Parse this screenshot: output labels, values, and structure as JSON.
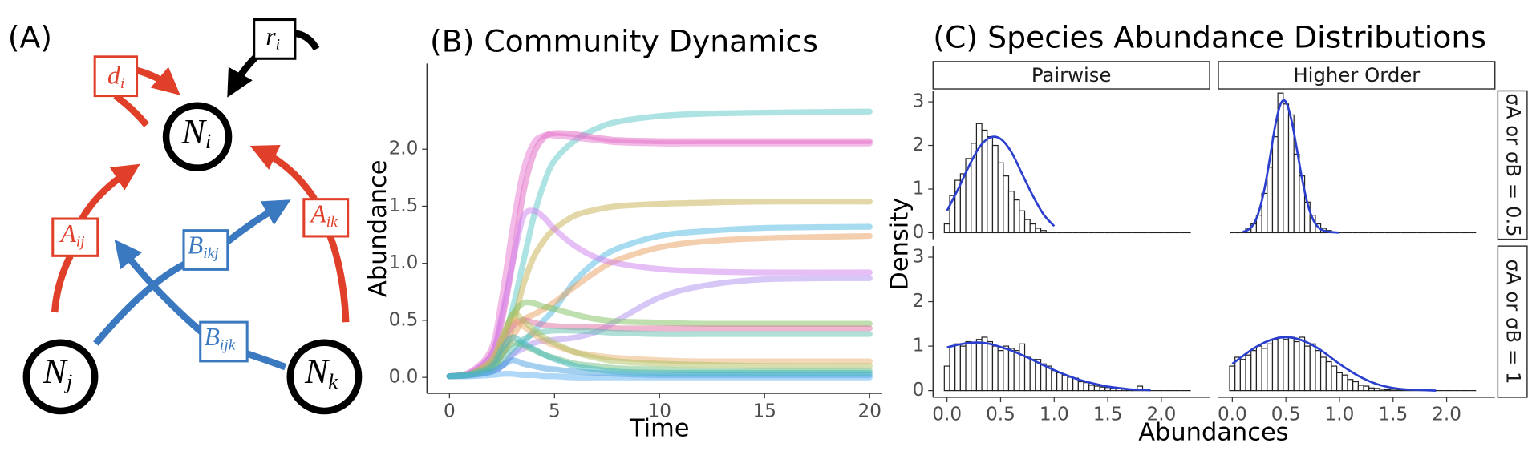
{
  "panel_label": "(A)",
  "diagram": {
    "nodes": [
      {
        "label": "N",
        "sub": "i"
      },
      {
        "label": "N",
        "sub": "j"
      },
      {
        "label": "N",
        "sub": "k"
      }
    ],
    "edges": [
      {
        "label": "d",
        "sub": "i"
      },
      {
        "label": "r",
        "sub": "i"
      },
      {
        "label": "A",
        "sub": "ij"
      },
      {
        "label": "A",
        "sub": "ik"
      },
      {
        "label": "B",
        "sub": "ikj"
      },
      {
        "label": "B",
        "sub": "ijk"
      }
    ]
  },
  "chart_data": [
    {
      "type": "line",
      "title": "(B) Community Dynamics",
      "xlabel": "Time",
      "ylabel": "Abundance",
      "grid": false,
      "xlim": [
        -1.07,
        20.6
      ],
      "ylim": [
        -0.14,
        2.75
      ],
      "xticks": [
        0,
        5,
        10,
        15,
        20
      ],
      "yticks": [
        {
          "value": 0,
          "label": "0.0"
        },
        0.5,
        {
          "value": 1,
          "label": "1.0"
        },
        1.5,
        {
          "value": 2,
          "label": "2.0"
        }
      ],
      "x": [
        0,
        1,
        2,
        2.5,
        3,
        3.5,
        4,
        4.5,
        5,
        6,
        7,
        8,
        10,
        12,
        15,
        20
      ],
      "series": [
        {
          "color": "#5bc8c8",
          "values": [
            0.01,
            0.03,
            0.12,
            0.3,
            0.6,
            1.0,
            1.4,
            1.7,
            1.9,
            2.08,
            2.18,
            2.24,
            2.29,
            2.31,
            2.32,
            2.33
          ]
        },
        {
          "color": "#e060c0",
          "values": [
            0.01,
            0.04,
            0.2,
            0.5,
            1.0,
            1.6,
            1.95,
            2.1,
            2.14,
            2.13,
            2.1,
            2.08,
            2.07,
            2.07,
            2.07,
            2.07
          ]
        },
        {
          "color": "#e878d0",
          "values": [
            0.01,
            0.05,
            0.25,
            0.7,
            1.3,
            1.8,
            2.05,
            2.12,
            2.12,
            2.1,
            2.08,
            2.06,
            2.05,
            2.05,
            2.05,
            2.05
          ]
        },
        {
          "color": "#c8b050",
          "values": [
            0.01,
            0.02,
            0.08,
            0.2,
            0.45,
            0.8,
            1.05,
            1.2,
            1.3,
            1.42,
            1.47,
            1.5,
            1.52,
            1.53,
            1.54,
            1.54
          ]
        },
        {
          "color": "#50b8e0",
          "values": [
            0.01,
            0.02,
            0.05,
            0.1,
            0.2,
            0.3,
            0.4,
            0.5,
            0.6,
            0.85,
            1.02,
            1.13,
            1.24,
            1.28,
            1.31,
            1.32
          ]
        },
        {
          "color": "#e8a060",
          "values": [
            0.01,
            0.03,
            0.1,
            0.2,
            0.35,
            0.5,
            0.55,
            0.6,
            0.66,
            0.8,
            0.93,
            1.03,
            1.14,
            1.19,
            1.22,
            1.24
          ]
        },
        {
          "color": "#d080f0",
          "values": [
            0.01,
            0.04,
            0.2,
            0.55,
            1.0,
            1.4,
            1.46,
            1.4,
            1.3,
            1.15,
            1.05,
            1.0,
            0.95,
            0.93,
            0.92,
            0.92
          ]
        },
        {
          "color": "#b090f0",
          "values": [
            0.01,
            0.02,
            0.05,
            0.1,
            0.2,
            0.25,
            0.3,
            0.32,
            0.33,
            0.35,
            0.4,
            0.5,
            0.7,
            0.8,
            0.86,
            0.87
          ]
        },
        {
          "color": "#80c060",
          "values": [
            0.01,
            0.03,
            0.15,
            0.35,
            0.55,
            0.65,
            0.65,
            0.62,
            0.6,
            0.55,
            0.51,
            0.49,
            0.48,
            0.47,
            0.47,
            0.47
          ]
        },
        {
          "color": "#e070a0",
          "values": [
            0.01,
            0.03,
            0.12,
            0.3,
            0.45,
            0.5,
            0.48,
            0.46,
            0.45,
            0.44,
            0.44,
            0.43,
            0.43,
            0.43,
            0.43,
            0.43
          ]
        },
        {
          "color": "#60c0b0",
          "values": [
            0.01,
            0.02,
            0.06,
            0.15,
            0.25,
            0.33,
            0.38,
            0.4,
            0.41,
            0.41,
            0.4,
            0.39,
            0.38,
            0.38,
            0.38,
            0.38
          ]
        },
        {
          "color": "#e8b070",
          "values": [
            0.01,
            0.03,
            0.15,
            0.35,
            0.5,
            0.45,
            0.38,
            0.32,
            0.28,
            0.22,
            0.19,
            0.17,
            0.15,
            0.14,
            0.14,
            0.14
          ]
        },
        {
          "color": "#b0c060",
          "values": [
            0.01,
            0.03,
            0.12,
            0.3,
            0.55,
            0.5,
            0.42,
            0.35,
            0.3,
            0.22,
            0.17,
            0.14,
            0.12,
            0.11,
            0.1,
            0.1
          ]
        },
        {
          "color": "#70c080",
          "values": [
            0.01,
            0.02,
            0.08,
            0.2,
            0.3,
            0.28,
            0.24,
            0.2,
            0.17,
            0.12,
            0.1,
            0.08,
            0.07,
            0.06,
            0.06,
            0.06
          ]
        },
        {
          "color": "#4aa0e0",
          "values": [
            0.01,
            0.02,
            0.05,
            0.1,
            0.15,
            0.12,
            0.1,
            0.08,
            0.07,
            0.05,
            0.04,
            0.03,
            0.02,
            0.02,
            0.02,
            0.02
          ]
        },
        {
          "color": "#60b0f0",
          "values": [
            0.01,
            0.01,
            0.02,
            0.03,
            0.03,
            0.02,
            0.02,
            0.01,
            0.01,
            0,
            0,
            0,
            0,
            0,
            0,
            0
          ]
        },
        {
          "color": "#40b8c0",
          "values": [
            0.01,
            0.03,
            0.1,
            0.25,
            0.35,
            0.3,
            0.25,
            0.2,
            0.16,
            0.1,
            0.07,
            0.05,
            0.04,
            0.04,
            0.04,
            0.04
          ]
        }
      ]
    },
    {
      "type": "histogram",
      "title": "(C) Species Abundance Distributions",
      "xlabel": "Abundances",
      "ylabel": "Density",
      "columns": [
        "Pairwise",
        "Higher Order"
      ],
      "rows": [
        "σA or σB = 0.5",
        "σA or σB = 1"
      ],
      "bar_color": "#ffffff",
      "curve_color": "#2b3fcf",
      "xlim": [
        -0.13,
        2.45
      ],
      "ylim": [
        -0.15,
        3.25
      ],
      "xticks": [
        {
          "value": 0,
          "label": "0.0"
        },
        0.5,
        {
          "value": 1,
          "label": "1.0"
        },
        1.5,
        {
          "value": 2,
          "label": "2.0"
        }
      ],
      "yticks": [
        0,
        1,
        2,
        3
      ],
      "bins": [
        -0.025,
        0.025,
        0.075,
        0.125,
        0.175,
        0.225,
        0.275,
        0.325,
        0.375,
        0.425,
        0.475,
        0.525,
        0.575,
        0.625,
        0.675,
        0.725,
        0.775,
        0.825,
        0.875,
        0.925,
        0.975,
        1.025,
        1.075,
        1.125,
        1.175,
        1.225,
        1.275,
        1.325,
        1.375,
        1.425,
        1.475,
        1.525,
        1.575,
        1.625,
        1.675,
        1.725,
        1.775,
        1.825,
        1.875,
        1.925,
        1.975,
        2.025,
        2.075,
        2.125,
        2.175,
        2.225,
        2.275
      ],
      "panels": [
        {
          "values": [
            0.2,
            0.85,
            1.2,
            1.35,
            1.7,
            2.05,
            2.5,
            2.35,
            2.2,
            2.0,
            1.6,
            1.3,
            0.95,
            0.75,
            0.5,
            0.3,
            0.2,
            0.1,
            0.05,
            0,
            0,
            0,
            0,
            0,
            0,
            0,
            0,
            0,
            0,
            0,
            0,
            0,
            0,
            0,
            0,
            0,
            0,
            0,
            0,
            0,
            0,
            0,
            0,
            0,
            0,
            0
          ],
          "curve": {
            "x": [
              0,
              0.1,
              0.2,
              0.3,
              0.4,
              0.5,
              0.6,
              0.7,
              0.8,
              0.9,
              1.0
            ],
            "values": [
              0.5,
              0.98,
              1.5,
              1.95,
              2.18,
              2.15,
              1.85,
              1.35,
              0.85,
              0.42,
              0.15
            ]
          }
        },
        {
          "values": [
            0,
            0,
            0,
            0.1,
            0.2,
            0.4,
            0.9,
            1.5,
            2.2,
            3.2,
            2.95,
            2.7,
            1.8,
            1.3,
            0.7,
            0.4,
            0.2,
            0.1,
            0.05,
            0,
            0,
            0,
            0,
            0,
            0,
            0,
            0,
            0,
            0,
            0,
            0,
            0,
            0,
            0,
            0,
            0,
            0,
            0,
            0,
            0,
            0,
            0,
            0,
            0,
            0,
            0
          ],
          "curve": {
            "x": [
              0.1,
              0.15,
              0.2,
              0.25,
              0.3,
              0.35,
              0.4,
              0.45,
              0.5,
              0.55,
              0.6,
              0.65,
              0.7,
              0.75,
              0.8,
              0.85,
              0.9,
              0.95,
              1.0
            ],
            "values": [
              0.02,
              0.07,
              0.2,
              0.5,
              1.0,
              1.7,
              2.45,
              2.95,
              3.0,
              2.6,
              1.95,
              1.25,
              0.68,
              0.32,
              0.13,
              0.05,
              0.02,
              0.01,
              0
            ]
          }
        },
        {
          "values": [
            0.55,
            1.0,
            1.05,
            1.0,
            1.1,
            1.05,
            1.15,
            1.2,
            1.1,
            1.0,
            0.9,
            1.0,
            0.95,
            0.9,
            1.05,
            0.75,
            0.7,
            0.7,
            0.6,
            0.55,
            0.45,
            0.4,
            0.35,
            0.3,
            0.28,
            0.2,
            0.18,
            0.12,
            0.1,
            0.08,
            0.07,
            0.05,
            0.04,
            0.03,
            0.02,
            0.02,
            0.1,
            0.01,
            0,
            0,
            0,
            0,
            0,
            0,
            0,
            0
          ],
          "curve": {
            "x": [
              0,
              0.1,
              0.2,
              0.3,
              0.4,
              0.5,
              0.6,
              0.7,
              0.8,
              0.9,
              1.0,
              1.1,
              1.2,
              1.3,
              1.4,
              1.5,
              1.6,
              1.7,
              1.8,
              1.9
            ],
            "values": [
              0.97,
              1.03,
              1.07,
              1.08,
              1.05,
              0.98,
              0.9,
              0.8,
              0.69,
              0.57,
              0.46,
              0.36,
              0.27,
              0.2,
              0.14,
              0.09,
              0.06,
              0.03,
              0.02,
              0.01
            ]
          }
        },
        {
          "values": [
            0.55,
            0.75,
            0.7,
            0.8,
            0.9,
            1.0,
            0.95,
            1.05,
            1.15,
            1.2,
            1.15,
            1.2,
            1.1,
            1.2,
            1.0,
            1.05,
            0.9,
            0.75,
            0.65,
            0.55,
            0.4,
            0.35,
            0.25,
            0.2,
            0.12,
            0.1,
            0.06,
            0.05,
            0.03,
            0.02,
            0.01,
            0.01,
            0,
            0,
            0,
            0,
            0,
            0,
            0,
            0,
            0,
            0,
            0,
            0,
            0,
            0
          ],
          "curve": {
            "x": [
              0,
              0.1,
              0.2,
              0.3,
              0.4,
              0.5,
              0.6,
              0.7,
              0.8,
              0.9,
              1.0,
              1.1,
              1.2,
              1.3,
              1.4,
              1.5,
              1.6,
              1.7,
              1.8,
              1.9
            ],
            "values": [
              0.6,
              0.78,
              0.95,
              1.08,
              1.17,
              1.2,
              1.17,
              1.08,
              0.95,
              0.78,
              0.6,
              0.44,
              0.3,
              0.19,
              0.11,
              0.06,
              0.03,
              0.02,
              0.01,
              0
            ]
          }
        }
      ]
    }
  ]
}
